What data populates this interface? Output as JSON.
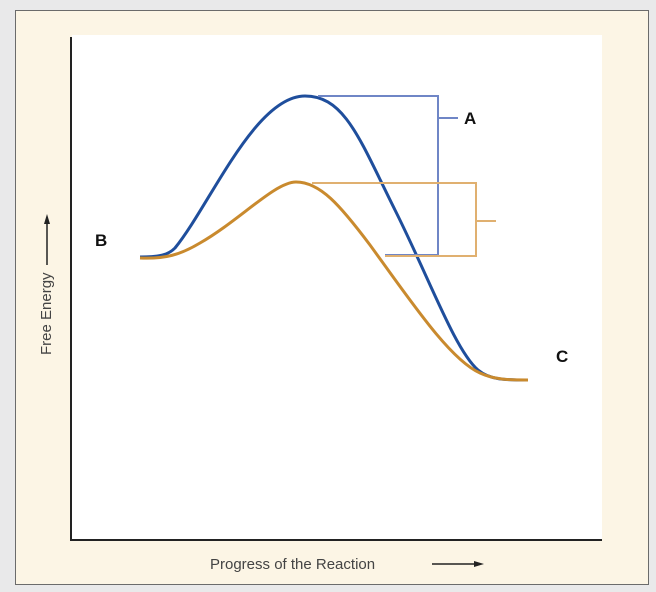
{
  "diagram": {
    "y_axis_label": "Free Energy",
    "x_axis_label": "Progress of the Reaction",
    "labels": {
      "a": "A",
      "b": "B",
      "c": "C"
    },
    "colors": {
      "uncatalyzed_curve": "#1f4e9c",
      "catalyzed_curve": "#c98a2e",
      "blue_bracket": "#6f86c6",
      "orange_bracket": "#e0b070",
      "frame_bg": "#fcf5e5"
    }
  }
}
